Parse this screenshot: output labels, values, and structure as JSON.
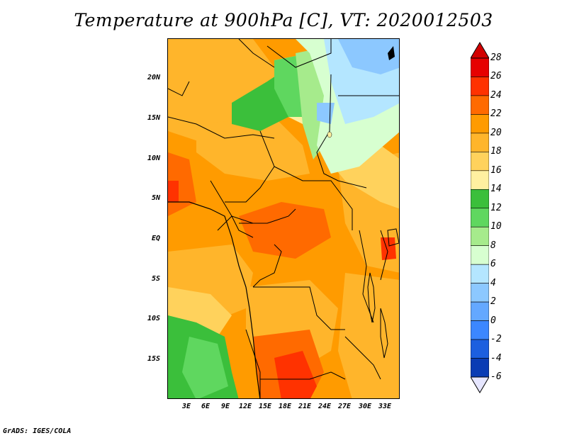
{
  "title": "Temperature at 900hPa [C], VT: 2020012503",
  "footer": "GrADS: IGES/COLA",
  "axes": {
    "lat_labels": [
      "20N",
      "15N",
      "10N",
      "5N",
      "EQ",
      "5S",
      "10S",
      "15S"
    ],
    "lon_labels": [
      "3E",
      "6E",
      "9E",
      "12E",
      "15E",
      "18E",
      "21E",
      "24E",
      "27E",
      "30E",
      "33E"
    ]
  },
  "colorbar": {
    "labels": [
      "28",
      "26",
      "24",
      "22",
      "20",
      "18",
      "16",
      "14",
      "12",
      "10",
      "8",
      "6",
      "4",
      "2",
      "0",
      "-2",
      "-4",
      "-6"
    ],
    "colors": [
      "#e60000",
      "#ff3200",
      "#ff6a00",
      "#ff9b00",
      "#ffb52b",
      "#ffd25c",
      "#fff0a0",
      "#3bbf3b",
      "#5fd75f",
      "#a6eb8c",
      "#d7ffd0",
      "#b4e6ff",
      "#8cc8ff",
      "#64a8ff",
      "#3c87ff",
      "#1c5fdf",
      "#0a3cb4",
      "#0a1478"
    ],
    "top_arrow_color": "#d20000",
    "bottom_arrow_color": "#e6e6ff"
  }
}
